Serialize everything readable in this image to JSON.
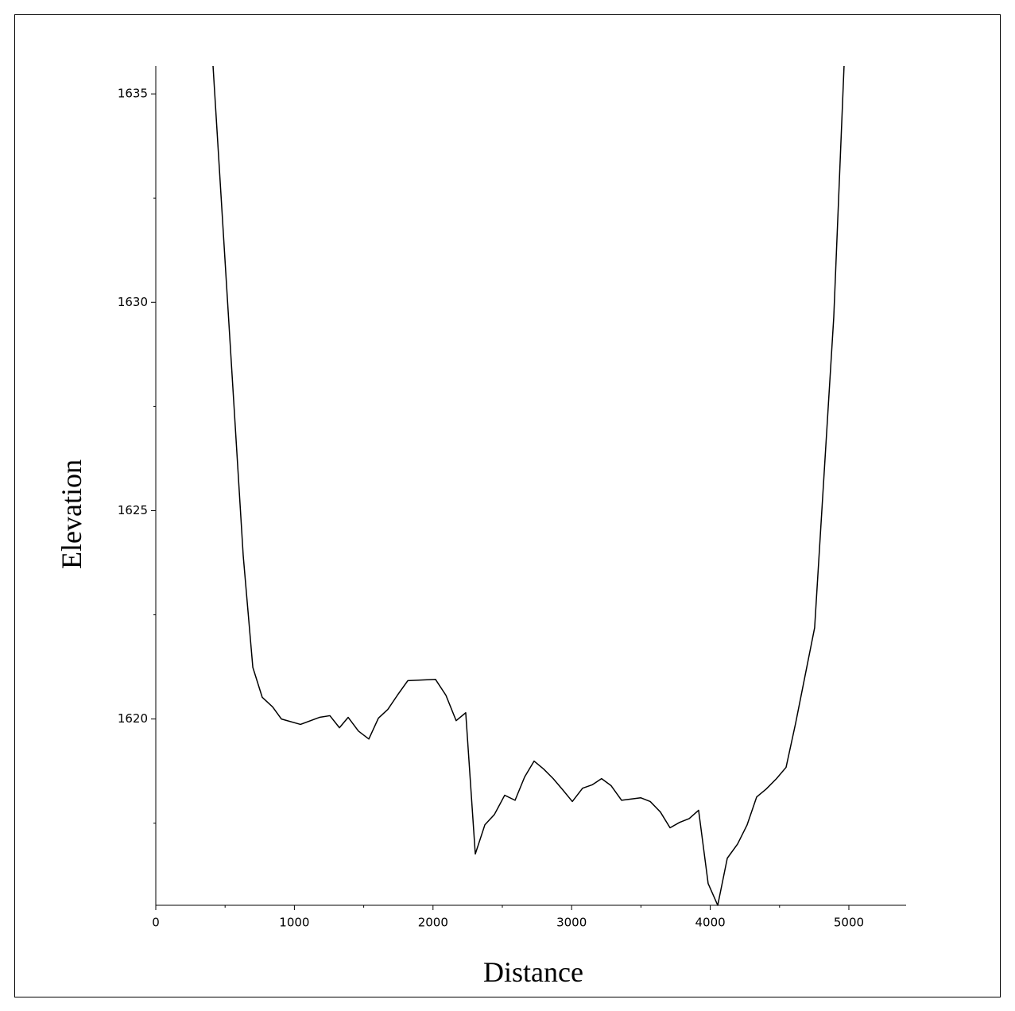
{
  "chart_data": {
    "type": "line",
    "x_label": "Distance",
    "y_label": "Elevation",
    "x": [
      400,
      631,
      700,
      768,
      843,
      906,
      1044,
      1181,
      1256,
      1325,
      1388,
      1462,
      1537,
      1606,
      1674,
      1743,
      1818,
      2018,
      2093,
      2167,
      2236,
      2305,
      2374,
      2443,
      2517,
      2592,
      2661,
      2729,
      2798,
      2867,
      2936,
      3005,
      3079,
      3148,
      3216,
      3285,
      3360,
      3498,
      3567,
      3640,
      3710,
      3779,
      3848,
      3916,
      3985,
      4054,
      4123,
      4197,
      4266,
      4335,
      4404,
      4478,
      4547,
      4616,
      4753,
      4891,
      5000
    ],
    "values": [
      1636.37,
      1623.91,
      1621.24,
      1620.52,
      1620.29,
      1620.0,
      1619.87,
      1620.04,
      1620.08,
      1619.79,
      1620.04,
      1619.71,
      1619.52,
      1620.02,
      1620.23,
      1620.57,
      1620.92,
      1620.95,
      1620.57,
      1619.96,
      1620.15,
      1616.76,
      1617.46,
      1617.71,
      1618.17,
      1618.05,
      1618.61,
      1618.99,
      1618.8,
      1618.57,
      1618.3,
      1618.02,
      1618.34,
      1618.42,
      1618.57,
      1618.4,
      1618.05,
      1618.11,
      1618.02,
      1617.77,
      1617.39,
      1617.52,
      1617.61,
      1617.81,
      1616.05,
      1615.53,
      1616.66,
      1617.0,
      1617.46,
      1618.13,
      1618.32,
      1618.57,
      1618.84,
      1619.9,
      1622.19,
      1629.64,
      1638.48
    ],
    "color": "#000000",
    "xlim": [
      0,
      5413
    ],
    "ylim": [
      1615.53,
      1635.67
    ],
    "xticks": [
      0,
      1000,
      2000,
      3000,
      4000,
      5000
    ],
    "yticks": [
      1620,
      1625,
      1630,
      1635
    ],
    "xminorticks": [
      500,
      1500,
      2500,
      3500,
      4500
    ],
    "yminorticks": [
      1617.5,
      1622.5,
      1627.5,
      1632.5
    ]
  }
}
